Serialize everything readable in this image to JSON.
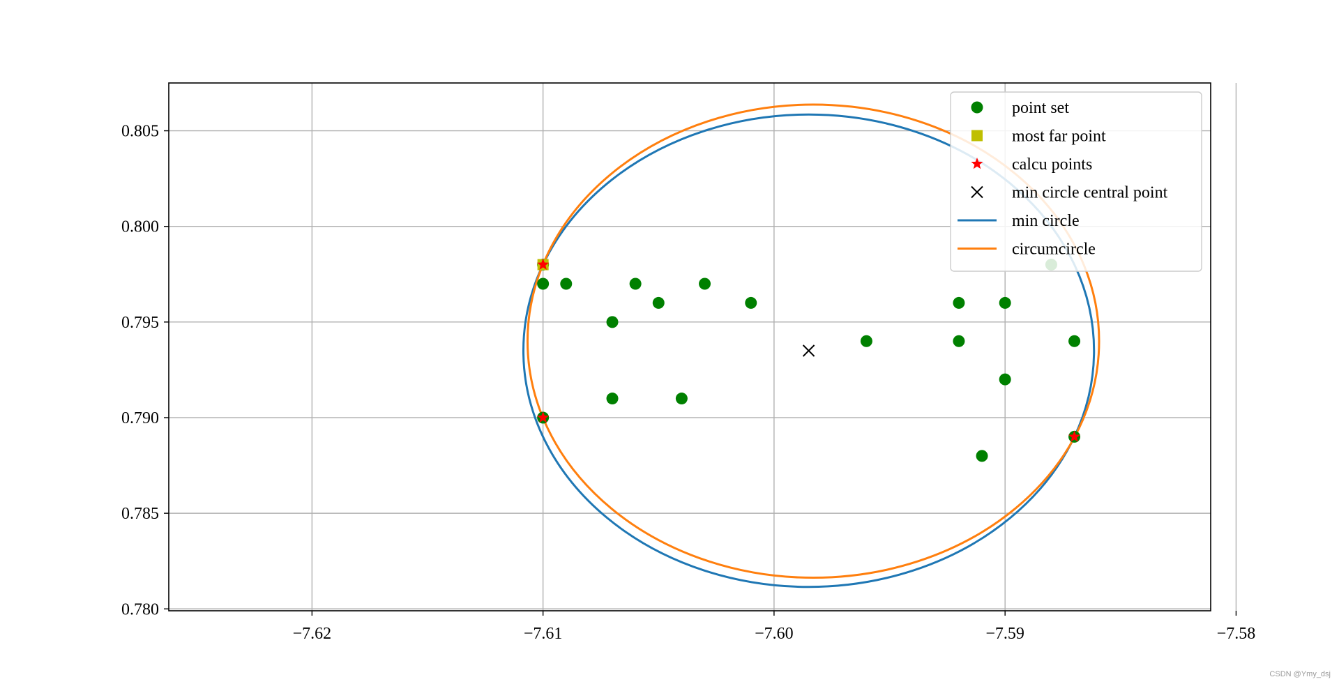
{
  "chart_data": {
    "type": "scatter",
    "title": "",
    "xlabel": "",
    "ylabel": "",
    "xlim": [
      -7.6262,
      -7.5811
    ],
    "ylim": [
      0.7799,
      0.8075
    ],
    "grid": true,
    "x_ticks": [
      -7.62,
      -7.61,
      -7.6,
      -7.59,
      -7.58
    ],
    "x_tick_labels": [
      "−7.62",
      "−7.61",
      "−7.60",
      "−7.59",
      "−7.58"
    ],
    "y_ticks": [
      0.78,
      0.785,
      0.79,
      0.795,
      0.8,
      0.805
    ],
    "y_tick_labels": [
      "0.780",
      "0.785",
      "0.790",
      "0.795",
      "0.800",
      "0.805"
    ],
    "legend_position": "top-right",
    "series": [
      {
        "name": "point set",
        "kind": "points",
        "marker": "circle",
        "color": "#008000",
        "x": [
          -7.61,
          -7.609,
          -7.607,
          -7.607,
          -7.606,
          -7.605,
          -7.604,
          -7.603,
          -7.601,
          -7.596,
          -7.592,
          -7.592,
          -7.59,
          -7.59,
          -7.591,
          -7.588,
          -7.587,
          -7.587,
          -7.61,
          -7.61
        ],
        "y": [
          0.797,
          0.797,
          0.795,
          0.791,
          0.797,
          0.796,
          0.791,
          0.797,
          0.796,
          0.794,
          0.796,
          0.794,
          0.796,
          0.792,
          0.788,
          0.798,
          0.794,
          0.789,
          0.79,
          0.798
        ]
      },
      {
        "name": "most far point",
        "kind": "points",
        "marker": "square",
        "color": "#bfbf00",
        "x": [
          -7.61
        ],
        "y": [
          0.798
        ]
      },
      {
        "name": "calcu points",
        "kind": "points",
        "marker": "star",
        "color": "#ff0000",
        "x": [
          -7.61,
          -7.61,
          -7.587
        ],
        "y": [
          0.798,
          0.79,
          0.789
        ]
      },
      {
        "name": "min circle central point",
        "kind": "points",
        "marker": "x",
        "color": "#000000",
        "x": [
          -7.5985
        ],
        "y": [
          0.7935
        ]
      },
      {
        "name": "min circle",
        "kind": "circle",
        "color": "#1f77b4",
        "cx": -7.5985,
        "cy": 0.7935,
        "r": 0.01235
      },
      {
        "name": "circumcircle",
        "kind": "circle",
        "color": "#ff7f0e",
        "cx": -7.5983,
        "cy": 0.794,
        "r": 0.01237
      }
    ]
  },
  "watermark": "CSDN @Ymy_dsj"
}
